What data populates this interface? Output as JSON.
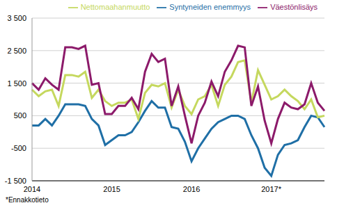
{
  "chart_data": {
    "type": "line",
    "categories": [
      "2014",
      null,
      null,
      null,
      null,
      null,
      null,
      null,
      null,
      null,
      null,
      null,
      "2015",
      null,
      null,
      null,
      null,
      null,
      null,
      null,
      null,
      null,
      null,
      null,
      "2016",
      null,
      null,
      null,
      null,
      null,
      null,
      null,
      null,
      null,
      null,
      null,
      "2017*",
      null,
      null,
      null,
      null,
      null,
      null,
      null,
      null
    ],
    "series": [
      {
        "name": "Syntyneiden enemmyys",
        "color": "#1f6fa6",
        "values": [
          200,
          200,
          400,
          200,
          500,
          850,
          850,
          850,
          800,
          400,
          200,
          -400,
          -250,
          -100,
          -100,
          0,
          300,
          650,
          950,
          750,
          750,
          150,
          100,
          -300,
          -900,
          -500,
          -200,
          100,
          300,
          400,
          500,
          500,
          400,
          -100,
          -500,
          -1100,
          -1350,
          -700,
          -400,
          -350,
          -250,
          150,
          500,
          450,
          150
        ]
      },
      {
        "name": "Nettomaahanmuutto",
        "color": "#c5d85e",
        "values": [
          1300,
          1100,
          1250,
          1300,
          800,
          1750,
          1750,
          1700,
          1850,
          1050,
          1300,
          950,
          800,
          900,
          900,
          1000,
          400,
          1200,
          1450,
          1400,
          1500,
          750,
          1300,
          800,
          550,
          1000,
          1100,
          1450,
          800,
          1450,
          1700,
          2150,
          2200,
          900,
          1900,
          1450,
          1000,
          1100,
          1300,
          1100,
          950,
          700,
          1000,
          450,
          500
        ]
      },
      {
        "name": "Väestönlisäys",
        "color": "#8c1a6a",
        "values": [
          1500,
          1300,
          1650,
          1450,
          1300,
          2600,
          2600,
          2550,
          2650,
          1450,
          1500,
          550,
          550,
          800,
          800,
          1050,
          700,
          1850,
          2400,
          2150,
          2250,
          800,
          1400,
          500,
          -350,
          500,
          900,
          1550,
          1100,
          1850,
          2200,
          2650,
          2600,
          800,
          1400,
          350,
          -350,
          400,
          900,
          750,
          700,
          850,
          1500,
          900,
          650
        ]
      }
    ],
    "ylim": [
      -1500,
      3500
    ],
    "yticks": [
      {
        "value": -1500,
        "label": "-1 500"
      },
      -500,
      500,
      {
        "value": 1500,
        "label": "1 500"
      },
      {
        "value": 2500,
        "label": "2 500"
      },
      {
        "value": 3500,
        "label": "3 500"
      }
    ],
    "grid": true,
    "legend": "top",
    "annotations": [
      "*Ennakkotieto"
    ]
  }
}
